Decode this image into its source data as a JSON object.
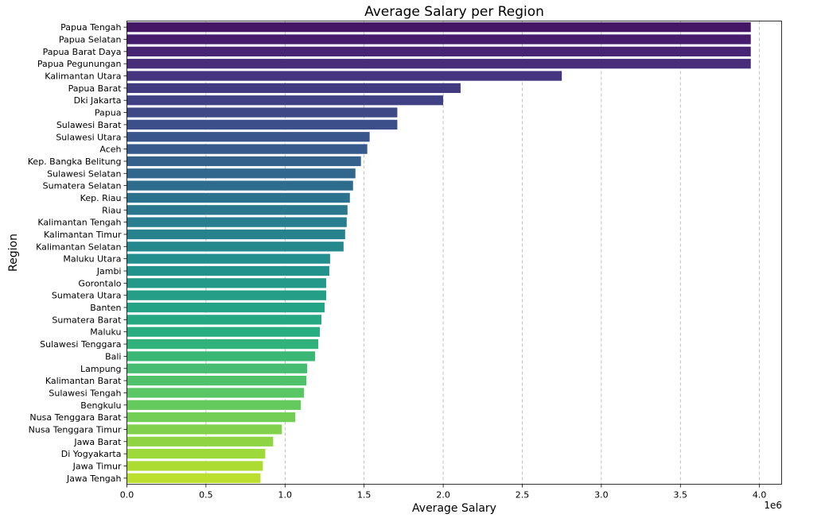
{
  "chart_data": {
    "type": "bar",
    "orientation": "horizontal",
    "title": "Average Salary per Region",
    "xlabel": "Average Salary",
    "ylabel": "Region",
    "x_offset_label": "1e6",
    "xlim": [
      0,
      4.14
    ],
    "x_ticks": [
      0.0,
      0.5,
      1.0,
      1.5,
      2.0,
      2.5,
      3.0,
      3.5,
      4.0
    ],
    "x_tick_labels": [
      "0.0",
      "0.5",
      "1.0",
      "1.5",
      "2.0",
      "2.5",
      "3.0",
      "3.5",
      "4.0"
    ],
    "grid": "x-axis dashed",
    "colormap": "viridis",
    "categories": [
      "Papua Tengah",
      "Papua Selatan",
      "Papua Barat Daya",
      "Papua Pegunungan",
      "Kalimantan Utara",
      "Papua Barat",
      "Dki Jakarta",
      "Papua",
      "Sulawesi Barat",
      "Sulawesi Utara",
      "Aceh",
      "Kep. Bangka Belitung",
      "Sulawesi Selatan",
      "Sumatera Selatan",
      "Kep. Riau",
      "Riau",
      "Kalimantan Tengah",
      "Kalimantan Timur",
      "Kalimantan Selatan",
      "Maluku Utara",
      "Jambi",
      "Gorontalo",
      "Sumatera Utara",
      "Banten",
      "Sumatera Barat",
      "Maluku",
      "Sulawesi Tenggara",
      "Bali",
      "Lampung",
      "Kalimantan Barat",
      "Sulawesi Tengah",
      "Bengkulu",
      "Nusa Tenggara Barat",
      "Nusa Tenggara Timur",
      "Jawa Barat",
      "Di Yogyakarta",
      "Jawa Timur",
      "Jawa Tengah"
    ],
    "values": [
      3945000,
      3945000,
      3945000,
      3945000,
      2750000,
      2110000,
      2000000,
      1710000,
      1710000,
      1535000,
      1520000,
      1480000,
      1445000,
      1430000,
      1410000,
      1395000,
      1390000,
      1380000,
      1370000,
      1285000,
      1280000,
      1260000,
      1260000,
      1250000,
      1230000,
      1220000,
      1210000,
      1190000,
      1140000,
      1135000,
      1120000,
      1100000,
      1065000,
      980000,
      925000,
      875000,
      860000,
      845000
    ]
  }
}
